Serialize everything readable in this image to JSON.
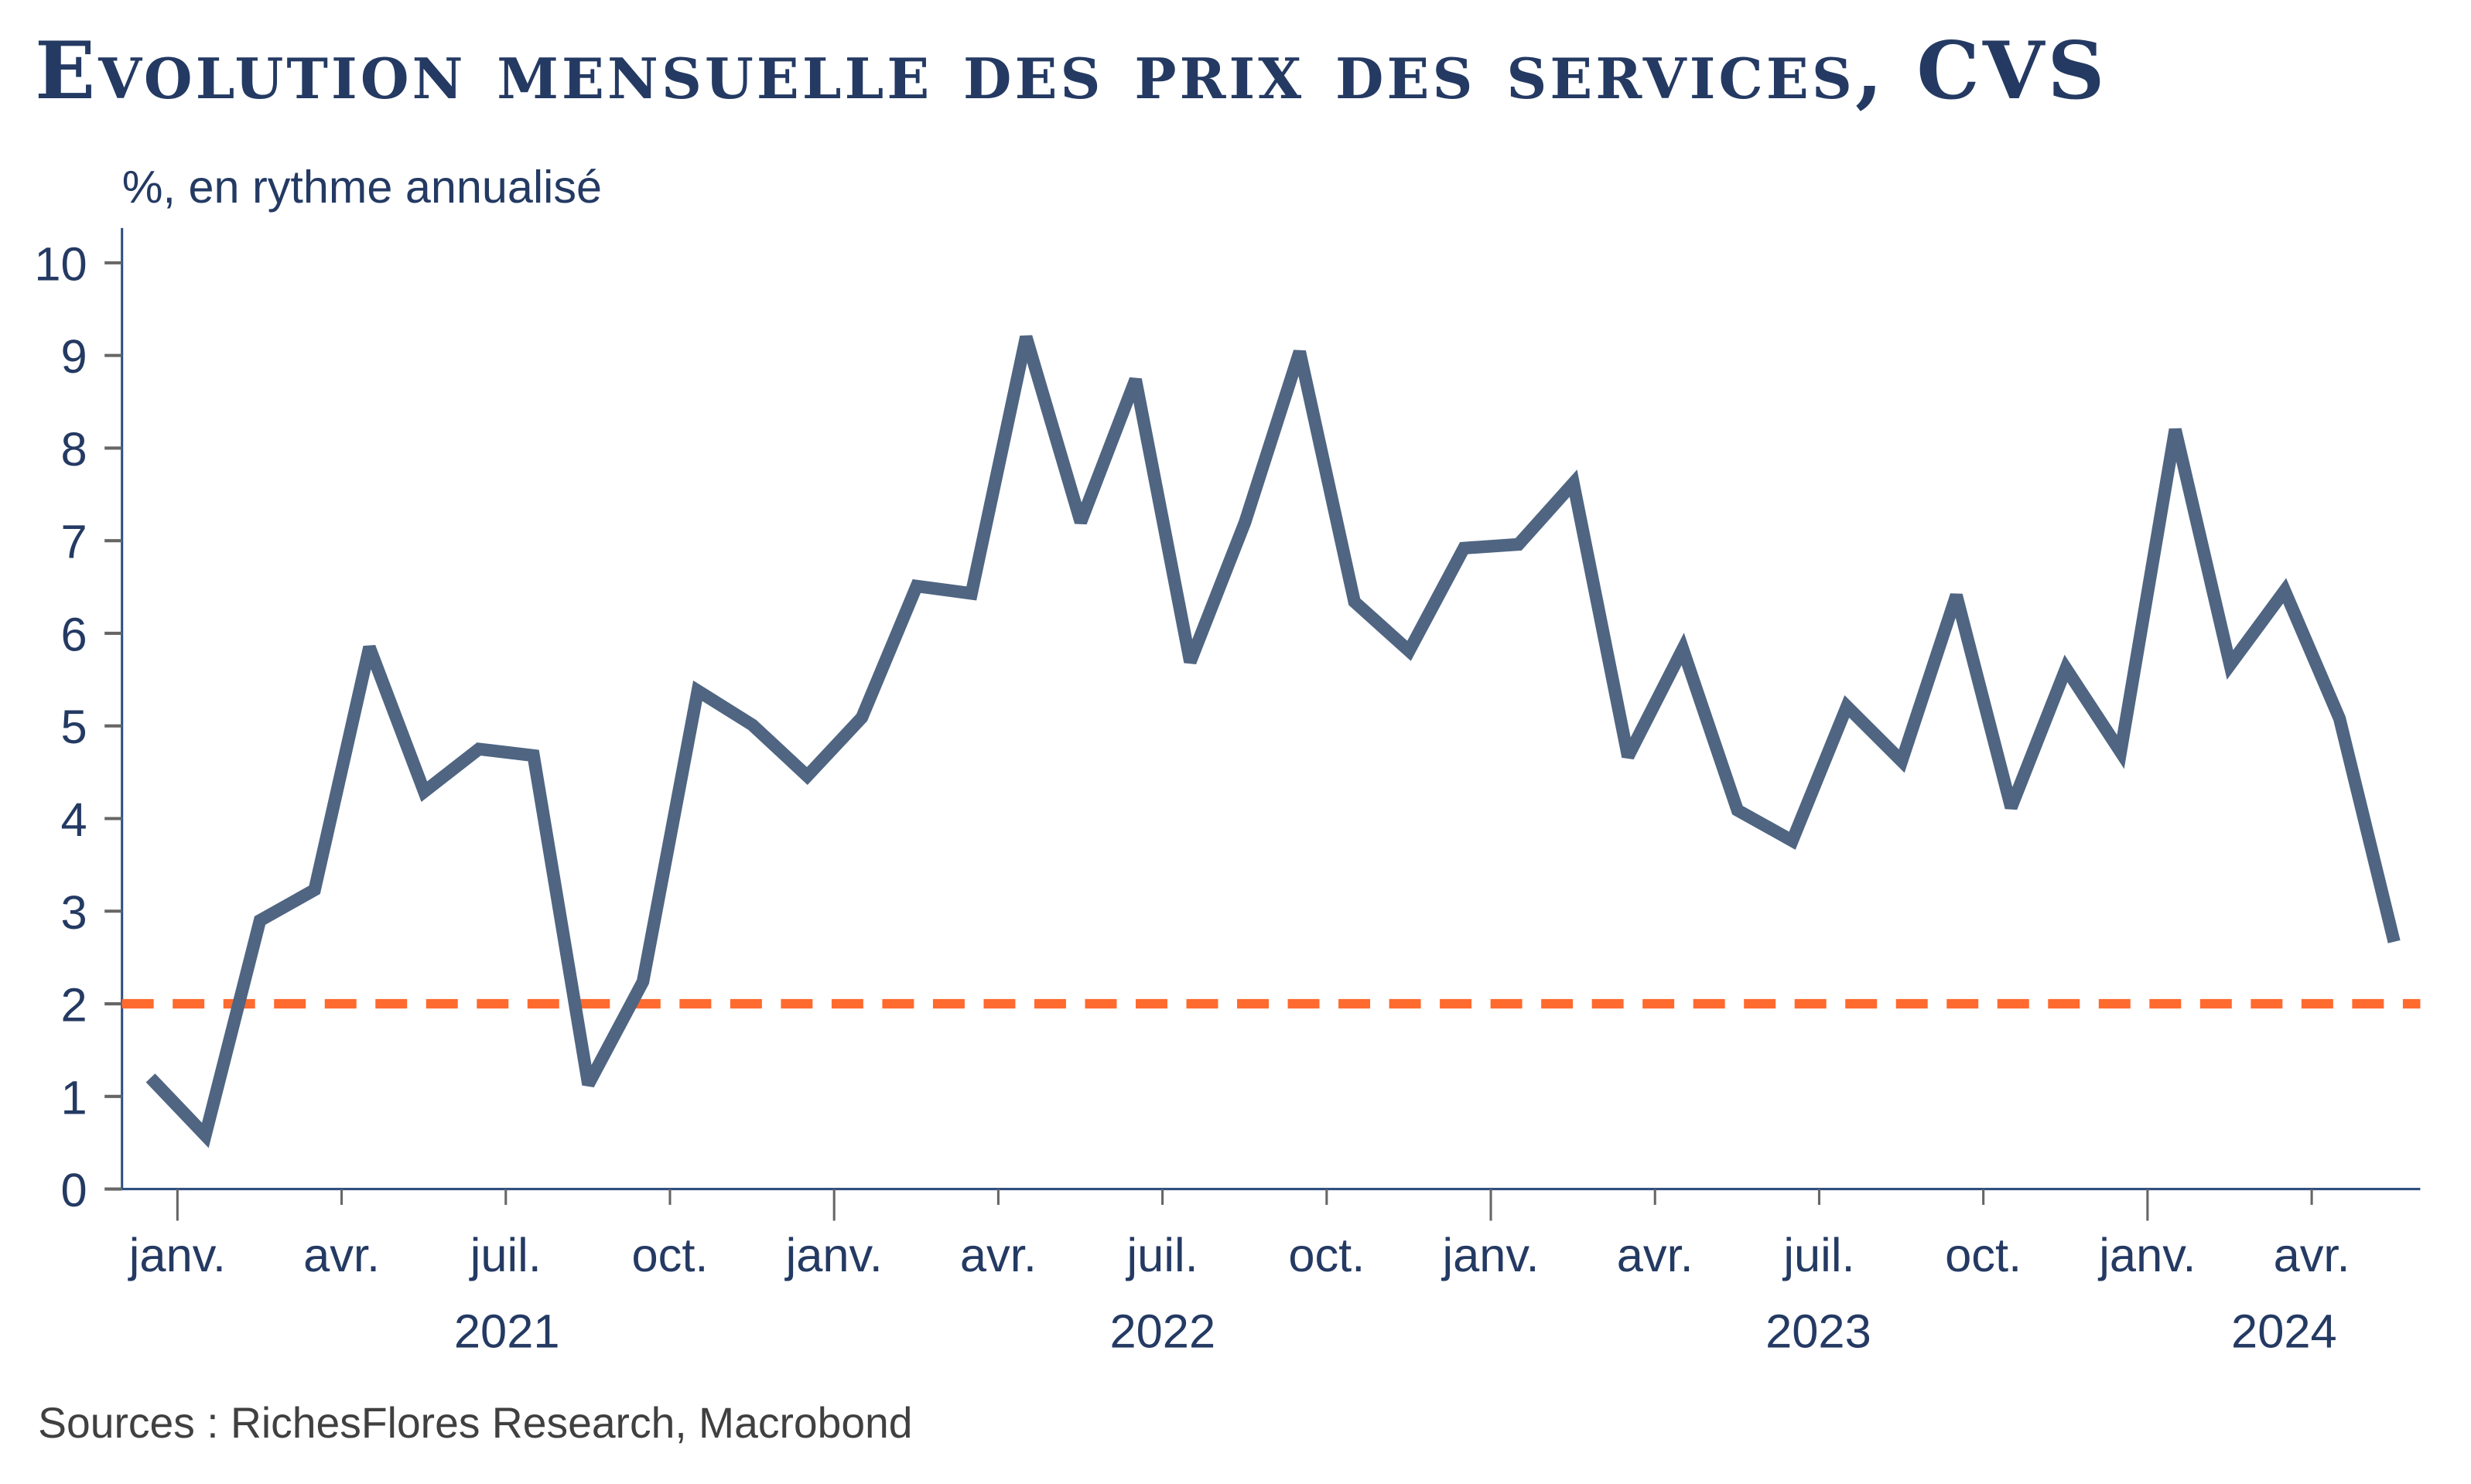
{
  "chart_data": {
    "type": "line",
    "title": "Evolution mensuelle des prix des services, CVS",
    "subtitle": "%, en rythme annualisé",
    "source": "Sources : RichesFlores Research, Macrobond",
    "ylim": [
      0,
      10
    ],
    "yticks": [
      "0",
      "1",
      "2",
      "3",
      "4",
      "5",
      "6",
      "7",
      "8",
      "9",
      "10"
    ],
    "grid": false,
    "xtick_labels": [
      "janv.",
      "avr.",
      "juil.",
      "oct.",
      "janv.",
      "avr.",
      "juil.",
      "oct.",
      "janv.",
      "avr.",
      "juil.",
      "oct.",
      "janv.",
      "avr."
    ],
    "year_labels": [
      "2021",
      "2022",
      "2023",
      "2024"
    ],
    "x": [
      "2021-01",
      "2021-02",
      "2021-03",
      "2021-04",
      "2021-05",
      "2021-06",
      "2021-07",
      "2021-08",
      "2021-09",
      "2021-10",
      "2021-11",
      "2021-12",
      "2022-01",
      "2022-02",
      "2022-03",
      "2022-04",
      "2022-05",
      "2022-06",
      "2022-07",
      "2022-08",
      "2022-09",
      "2022-10",
      "2022-11",
      "2022-12",
      "2023-01",
      "2023-02",
      "2023-03",
      "2023-04",
      "2023-05",
      "2023-06",
      "2023-07",
      "2023-08",
      "2023-09",
      "2023-10",
      "2023-11",
      "2023-12",
      "2024-01",
      "2024-02",
      "2024-03",
      "2024-04",
      "2024-05",
      "2024-06"
    ],
    "series": [
      {
        "values": [
          1.2,
          0.58,
          2.9,
          3.23,
          5.85,
          4.29,
          4.75,
          4.68,
          1.13,
          2.24,
          5.38,
          5.01,
          4.46,
          5.09,
          6.51,
          6.43,
          9.2,
          7.2,
          8.74,
          5.69,
          7.2,
          9.04,
          6.34,
          5.81,
          6.92,
          6.96,
          7.62,
          4.67,
          5.83,
          4.09,
          3.76,
          5.21,
          4.62,
          6.41,
          4.12,
          5.62,
          4.72,
          8.2,
          5.66,
          6.46,
          5.08,
          2.67
        ],
        "color": "#4f6582"
      }
    ],
    "reference_line": {
      "y": 2,
      "color": "#ff6a2f",
      "style": "dashed"
    }
  }
}
